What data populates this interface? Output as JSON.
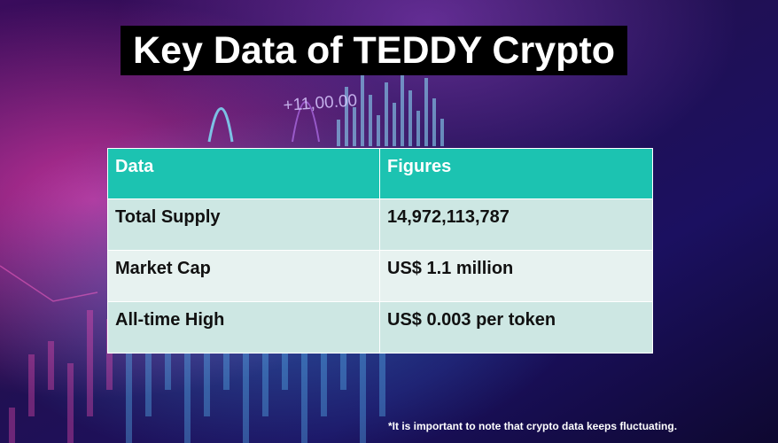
{
  "title": "Key Data of TEDDY Crypto",
  "background_text": "+11,00.00",
  "table": {
    "headers": [
      "Data",
      "Figures"
    ],
    "rows": [
      [
        "Total Supply",
        "14,972,113,787"
      ],
      [
        "Market Cap",
        "US$ 1.1 million"
      ],
      [
        "All-time High",
        "US$ 0.003 per token"
      ]
    ]
  },
  "footnote": "*It is important to note that crypto data keeps fluctuating.",
  "colors": {
    "header_bg": "#1cc3b1",
    "row_odd_bg": "#cde7e3",
    "row_even_bg": "#e7f2f0",
    "title_bg": "#000000",
    "background": "#1a0a3a"
  }
}
